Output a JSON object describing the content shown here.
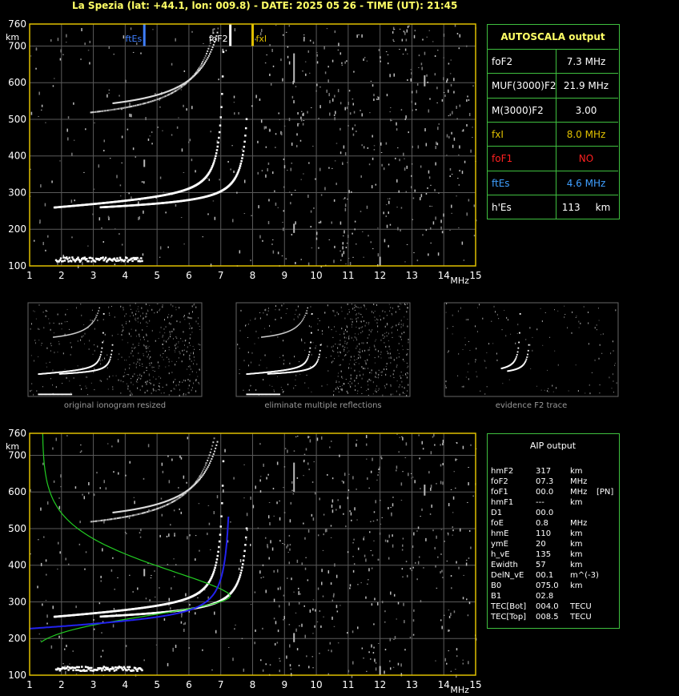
{
  "header": {
    "title": "La Spezia (lat: +44.1, lon: 009.8) - DATE: 2025 05 26 - TIME (UT): 21:45"
  },
  "chart_data": [
    {
      "type": "scatter",
      "name": "ionogram-autoscala",
      "x_label": "MHz",
      "y_label": "km",
      "xlim": [
        1,
        15
      ],
      "ylim": [
        100,
        760
      ],
      "x_ticks": [
        "1",
        "2",
        "3",
        "4",
        "5",
        "6",
        "7",
        "8",
        "9",
        "10",
        "11",
        "12",
        "13",
        "14",
        "15"
      ],
      "y_ticks": [
        "100",
        "200",
        "300",
        "400",
        "500",
        "600",
        "700",
        "760"
      ],
      "markers": [
        {
          "label": "ftEs",
          "x": 4.6,
          "color": "#3f7fff"
        },
        {
          "label": "foF2",
          "x": 7.3,
          "color": "#ffffff"
        },
        {
          "label": "fxI",
          "x": 8.0,
          "color": "#e0c000"
        }
      ]
    },
    {
      "type": "scatter",
      "name": "ionogram-aip",
      "x_label": "MHz",
      "y_label": "km",
      "xlim": [
        1,
        15
      ],
      "ylim": [
        100,
        760
      ],
      "x_ticks": [
        "1",
        "2",
        "3",
        "4",
        "5",
        "6",
        "7",
        "8",
        "9",
        "10",
        "11",
        "12",
        "13",
        "14",
        "15"
      ],
      "y_ticks": [
        "100",
        "200",
        "300",
        "400",
        "500",
        "600",
        "700",
        "760"
      ]
    }
  ],
  "autoscala": {
    "title": "AUTOSCALA output",
    "rows": [
      {
        "label": "foF2",
        "value": "7.3 MHz",
        "color": "#ffffff"
      },
      {
        "label": "MUF(3000)F2",
        "value": "21.9 MHz",
        "color": "#ffffff"
      },
      {
        "label": "M(3000)F2",
        "value": "3.00",
        "color": "#ffffff"
      },
      {
        "label": "fxI",
        "value": "8.0 MHz",
        "color": "#e0c000"
      },
      {
        "label": "foF1",
        "value": "NO",
        "color": "#ff2020"
      },
      {
        "label": "ftEs",
        "value": "4.6 MHz",
        "color": "#3f9fff"
      },
      {
        "label": "h'Es",
        "value": "113     km",
        "color": "#ffffff"
      }
    ]
  },
  "thumbnails": [
    {
      "caption": "original ionogram resized"
    },
    {
      "caption": "eliminate multiple reflections"
    },
    {
      "caption": "evidence F2 trace"
    }
  ],
  "aip": {
    "title": "AIP output",
    "rows": [
      {
        "name": "hmF2",
        "value": "317",
        "unit": "km",
        "extra": ""
      },
      {
        "name": "foF2",
        "value": "07.3",
        "unit": "MHz",
        "extra": ""
      },
      {
        "name": "foF1",
        "value": "00.0",
        "unit": "MHz",
        "extra": "[PN]"
      },
      {
        "name": "hmF1",
        "value": "---",
        "unit": "km",
        "extra": ""
      },
      {
        "name": "D1",
        "value": "00.0",
        "unit": "",
        "extra": ""
      },
      {
        "name": "foE",
        "value": "0.8",
        "unit": "MHz",
        "extra": ""
      },
      {
        "name": "hmE",
        "value": "110",
        "unit": "km",
        "extra": ""
      },
      {
        "name": "ymE",
        "value": "20",
        "unit": "km",
        "extra": ""
      },
      {
        "name": "h_vE",
        "value": "135",
        "unit": "km",
        "extra": ""
      },
      {
        "name": "Ewidth",
        "value": "57",
        "unit": "km",
        "extra": ""
      },
      {
        "name": "DelN_vE",
        "value": "00.1",
        "unit": "m^(-3)",
        "extra": ""
      },
      {
        "name": "B0",
        "value": "075.0",
        "unit": "km",
        "extra": ""
      },
      {
        "name": "B1",
        "value": "02.8",
        "unit": "",
        "extra": ""
      },
      {
        "name": "TEC[Bot]",
        "value": "004.0",
        "unit": "TECU",
        "extra": ""
      },
      {
        "name": "TEC[Top]",
        "value": "008.5",
        "unit": "TECU",
        "extra": ""
      }
    ]
  }
}
